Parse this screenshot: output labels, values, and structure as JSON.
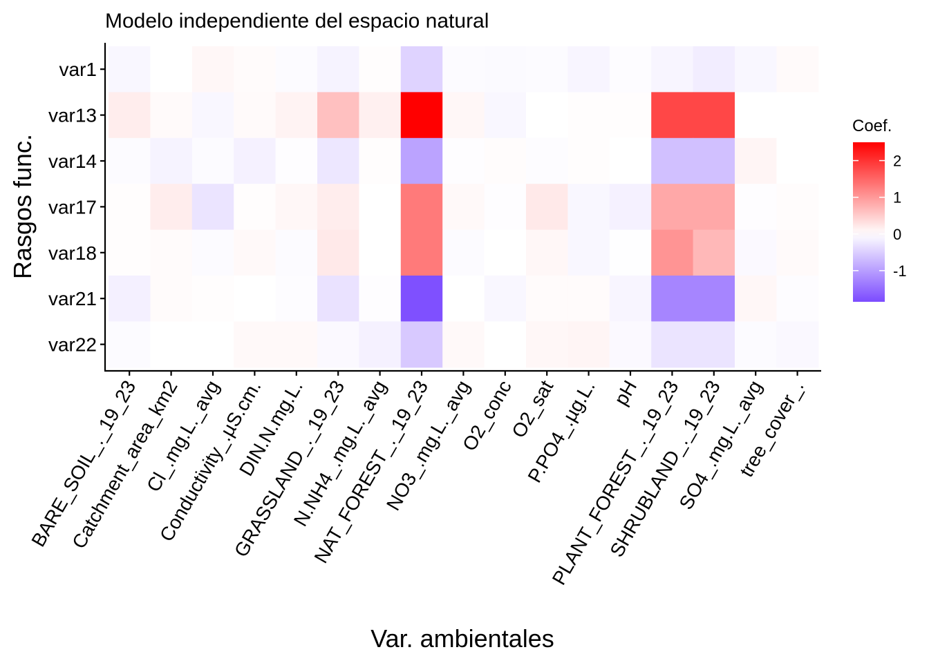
{
  "chart_data": {
    "type": "heatmap",
    "title": "Modelo independiente del espacio natural",
    "xlabel": "Var. ambientales",
    "ylabel": "Rasgos func.",
    "x_categories": [
      "BARE_SOIL_._19_23",
      "Catchment_area_km2",
      "Cl_.mg.L._avg",
      "Conductivity_.µS.cm.",
      "DIN.N.mg.L.",
      "GRASSLAND_._19_23",
      "N.NH4_.mg.L._avg",
      "NAT_FOREST_._19_23",
      "NO3_.mg.L._avg",
      "O2_conc",
      "O2_sat",
      "P.PO4_.µg.L.",
      "pH",
      "PLANT_FOREST_._19_23",
      "SHRUBLAND_._19_23",
      "SO4_.mg.L._avg",
      "tree_cover_."
    ],
    "y_categories": [
      "var1",
      "var13",
      "var14",
      "var17",
      "var18",
      "var21",
      "var22"
    ],
    "values": [
      [
        -0.08,
        0.0,
        0.08,
        0.04,
        -0.04,
        -0.12,
        0.02,
        -0.45,
        -0.04,
        -0.05,
        -0.04,
        -0.1,
        -0.03,
        -0.1,
        -0.18,
        -0.08,
        0.05
      ],
      [
        0.18,
        0.05,
        -0.08,
        0.05,
        0.12,
        0.62,
        0.15,
        2.5,
        0.08,
        -0.08,
        0.0,
        0.02,
        0.02,
        1.8,
        1.8,
        0.0,
        0.0
      ],
      [
        -0.04,
        -0.12,
        -0.04,
        -0.14,
        -0.02,
        -0.25,
        0.02,
        -0.95,
        -0.02,
        0.03,
        -0.03,
        0.02,
        0.0,
        -0.65,
        -0.65,
        0.1,
        0.0
      ],
      [
        0.02,
        0.18,
        -0.28,
        0.02,
        0.08,
        0.18,
        0.0,
        1.3,
        0.06,
        -0.02,
        0.22,
        -0.08,
        -0.14,
        0.85,
        0.85,
        -0.02,
        0.03
      ],
      [
        0.02,
        0.04,
        -0.04,
        0.06,
        -0.04,
        0.22,
        0.0,
        1.3,
        -0.04,
        0.0,
        0.08,
        -0.08,
        -0.01,
        1.05,
        0.7,
        -0.06,
        0.05
      ],
      [
        -0.15,
        0.04,
        0.02,
        0.0,
        -0.03,
        -0.3,
        -0.02,
        -1.8,
        0.0,
        -0.08,
        0.04,
        0.04,
        -0.1,
        -1.25,
        -1.25,
        0.08,
        -0.03
      ],
      [
        -0.04,
        0.0,
        0.0,
        0.06,
        0.06,
        -0.06,
        -0.14,
        -0.55,
        0.06,
        0.0,
        0.08,
        0.1,
        -0.06,
        -0.28,
        -0.28,
        -0.04,
        -0.07
      ]
    ],
    "color_scale": {
      "low": "#7b4bff",
      "mid": "#ffffff",
      "high": "#ff0000",
      "range": [
        -1.85,
        2.5
      ]
    },
    "legend": {
      "title": "Coef.",
      "ticks": [
        2,
        1,
        0,
        -1
      ],
      "tick_labels": [
        "2",
        "1",
        "0",
        "-1"
      ],
      "placement": "right"
    },
    "grid": false
  }
}
